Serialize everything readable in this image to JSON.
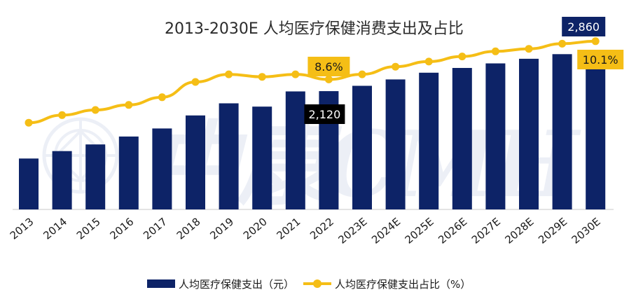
{
  "chart_data": {
    "type": "bar+line",
    "title": "2013-2030E 人均医疗保健消费支出及占比",
    "categories": [
      "2013",
      "2014",
      "2015",
      "2016",
      "2017",
      "2018",
      "2019",
      "2020",
      "2021",
      "2022",
      "2023E",
      "2024E",
      "2025E",
      "2026E",
      "2027E",
      "2028E",
      "2029E",
      "2030E"
    ],
    "series": [
      {
        "name": "人均医疗保健支出（元）",
        "type": "bar",
        "color": "#0d2367",
        "values": [
          912,
          1045,
          1165,
          1307,
          1451,
          1685,
          1902,
          1843,
          2115,
          2120,
          2215,
          2330,
          2450,
          2535,
          2617,
          2700,
          2783,
          2860
        ],
        "labels": {
          "9": "2,120",
          "17": "2,860"
        }
      },
      {
        "name": "人均医疗保健支出占比（%）",
        "type": "line",
        "color": "#f5be16",
        "values": [
          6.9,
          7.2,
          7.4,
          7.6,
          7.9,
          8.5,
          8.8,
          8.7,
          8.8,
          8.6,
          8.8,
          9.1,
          9.3,
          9.5,
          9.7,
          9.8,
          10.0,
          10.1
        ],
        "labels": {
          "9": "8.6%",
          "17": "10.1%"
        }
      }
    ],
    "y_bar_range": [
      0,
      3000
    ],
    "y_line_range": [
      0,
      12
    ],
    "grid": false,
    "legend_position": "bottom"
  },
  "watermark": {
    "text": "中康CMH"
  }
}
